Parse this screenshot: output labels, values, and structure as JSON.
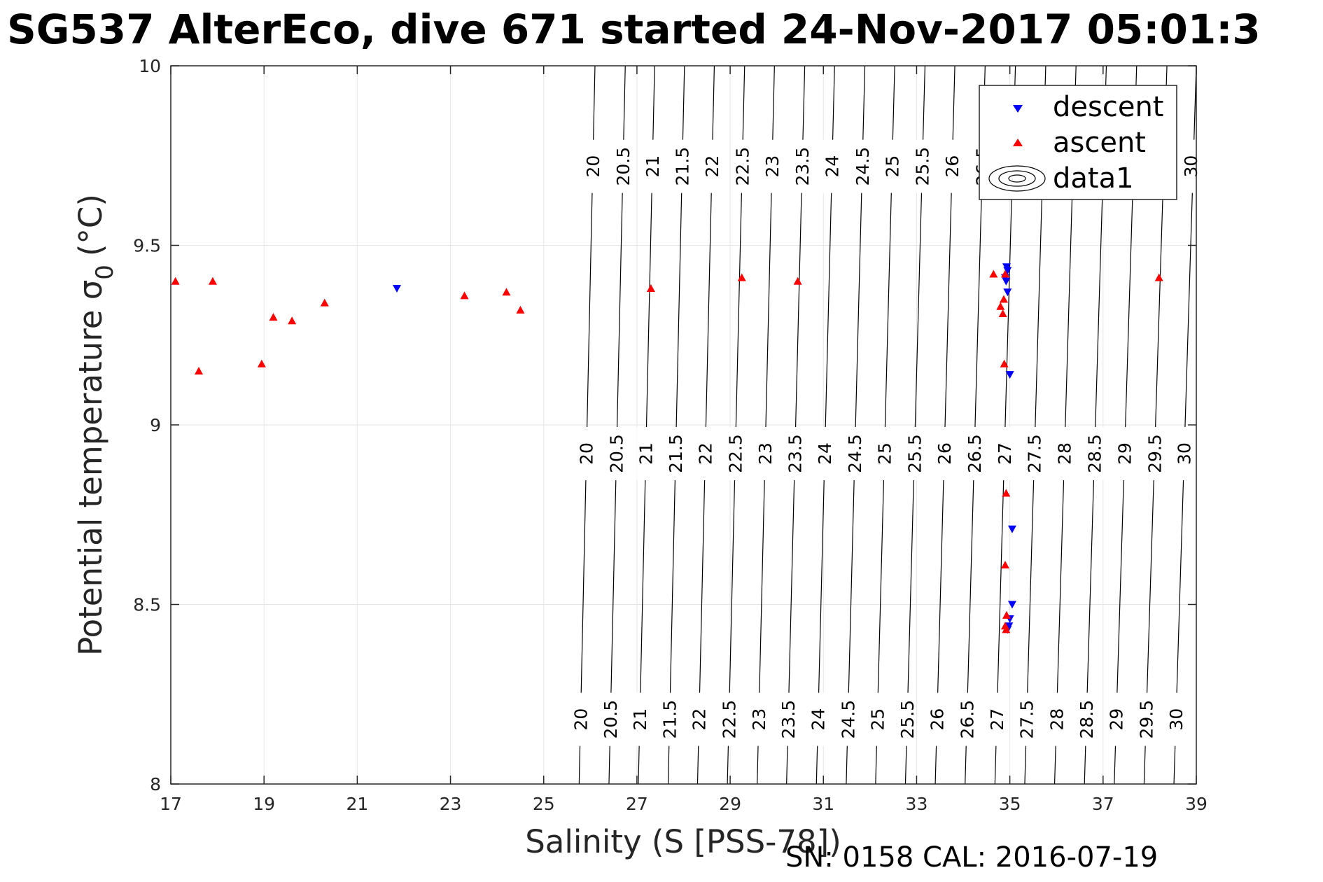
{
  "title": "SG537 AlterEco, dive 671 started 24-Nov-2017 05:01:3",
  "footer": "SN: 0158  CAL: 2016-07-19",
  "colors": {
    "descent": "#0000ff",
    "ascent": "#ff0000",
    "grid": "#e6e6e6",
    "axis": "#262626",
    "contour": "#000000"
  },
  "chart_data": {
    "type": "scatter",
    "xlabel": "Salinity (S [PSS-78])",
    "ylabel_main": "Potential temperature σ",
    "ylabel_sub": "0",
    "ylabel_unit": "(°C)",
    "xlim": [
      17,
      39
    ],
    "ylim": [
      8,
      10
    ],
    "xticks": [
      "17",
      "19",
      "21",
      "23",
      "25",
      "27",
      "29",
      "31",
      "33",
      "35",
      "37",
      "39"
    ],
    "yticks": [
      "8",
      "8.5",
      "9",
      "9.5",
      "10"
    ],
    "grid": true,
    "legend_position": "top-right",
    "legend": [
      "descent",
      "ascent",
      "data1"
    ],
    "series": [
      {
        "name": "descent",
        "marker": "triangle-down",
        "points": [
          [
            21.85,
            9.38
          ],
          [
            34.93,
            9.44
          ],
          [
            34.95,
            9.43
          ],
          [
            34.9,
            9.41
          ],
          [
            34.92,
            9.4
          ],
          [
            34.95,
            9.37
          ],
          [
            35.0,
            9.14
          ],
          [
            35.05,
            8.71
          ],
          [
            35.05,
            8.5
          ],
          [
            35.0,
            8.46
          ],
          [
            34.98,
            8.44
          ],
          [
            34.95,
            8.43
          ]
        ]
      },
      {
        "name": "ascent",
        "marker": "triangle-up",
        "points": [
          [
            17.1,
            9.4
          ],
          [
            17.6,
            9.15
          ],
          [
            17.9,
            9.4
          ],
          [
            18.95,
            9.17
          ],
          [
            19.2,
            9.3
          ],
          [
            19.6,
            9.29
          ],
          [
            20.3,
            9.34
          ],
          [
            23.3,
            9.36
          ],
          [
            24.2,
            9.37
          ],
          [
            24.5,
            9.32
          ],
          [
            27.3,
            9.38
          ],
          [
            29.25,
            9.41
          ],
          [
            30.45,
            9.4
          ],
          [
            34.65,
            9.42
          ],
          [
            34.8,
            9.33
          ],
          [
            34.85,
            9.31
          ],
          [
            34.87,
            9.35
          ],
          [
            34.9,
            9.42
          ],
          [
            34.88,
            9.17
          ],
          [
            34.92,
            8.81
          ],
          [
            34.9,
            8.61
          ],
          [
            34.93,
            8.47
          ],
          [
            34.9,
            8.44
          ],
          [
            34.92,
            8.43
          ],
          [
            38.2,
            9.41
          ]
        ]
      }
    ],
    "contours": {
      "name": "data1",
      "levels": [
        "20",
        "20.5",
        "21",
        "21.5",
        "22",
        "22.5",
        "23",
        "23.5",
        "24",
        "24.5",
        "25",
        "25.5",
        "26",
        "26.5",
        "27",
        "27.5",
        "28",
        "28.5",
        "29",
        "29.5",
        "30"
      ],
      "s_at_t10": [
        26.1,
        26.75,
        27.38,
        28.02,
        28.66,
        29.31,
        29.95,
        30.6,
        31.24,
        31.89,
        32.53,
        33.18,
        33.82,
        34.47,
        35.12,
        35.77,
        36.42,
        37.07,
        37.72,
        38.37,
        39.0
      ],
      "s_at_t8": [
        25.76,
        26.4,
        27.03,
        27.67,
        28.3,
        28.94,
        29.58,
        30.21,
        30.85,
        31.49,
        32.12,
        32.76,
        33.4,
        34.04,
        34.68,
        35.32,
        35.96,
        36.6,
        37.24,
        37.88,
        38.52
      ],
      "label_rows": [
        {
          "t": 9.72,
          "levels": [
            "20",
            "20.5",
            "21",
            "21.5",
            "22",
            "22.5",
            "23",
            "23.5",
            "24",
            "24.5",
            "25",
            "25.5",
            "26",
            "26.5",
            "30"
          ]
        },
        {
          "t": 8.92,
          "levels": [
            "20",
            "20.5",
            "21",
            "21.5",
            "22",
            "22.5",
            "23",
            "23.5",
            "24",
            "24.5",
            "25",
            "25.5",
            "26",
            "26.5",
            "27",
            "27.5",
            "28",
            "28.5",
            "29",
            "29.5",
            "30"
          ]
        },
        {
          "t": 8.18,
          "levels": [
            "20",
            "20.5",
            "21",
            "21.5",
            "22",
            "22.5",
            "23",
            "23.5",
            "24",
            "24.5",
            "25",
            "25.5",
            "26",
            "26.5",
            "27",
            "27.5",
            "28",
            "28.5",
            "29",
            "29.5",
            "30"
          ]
        }
      ]
    }
  }
}
